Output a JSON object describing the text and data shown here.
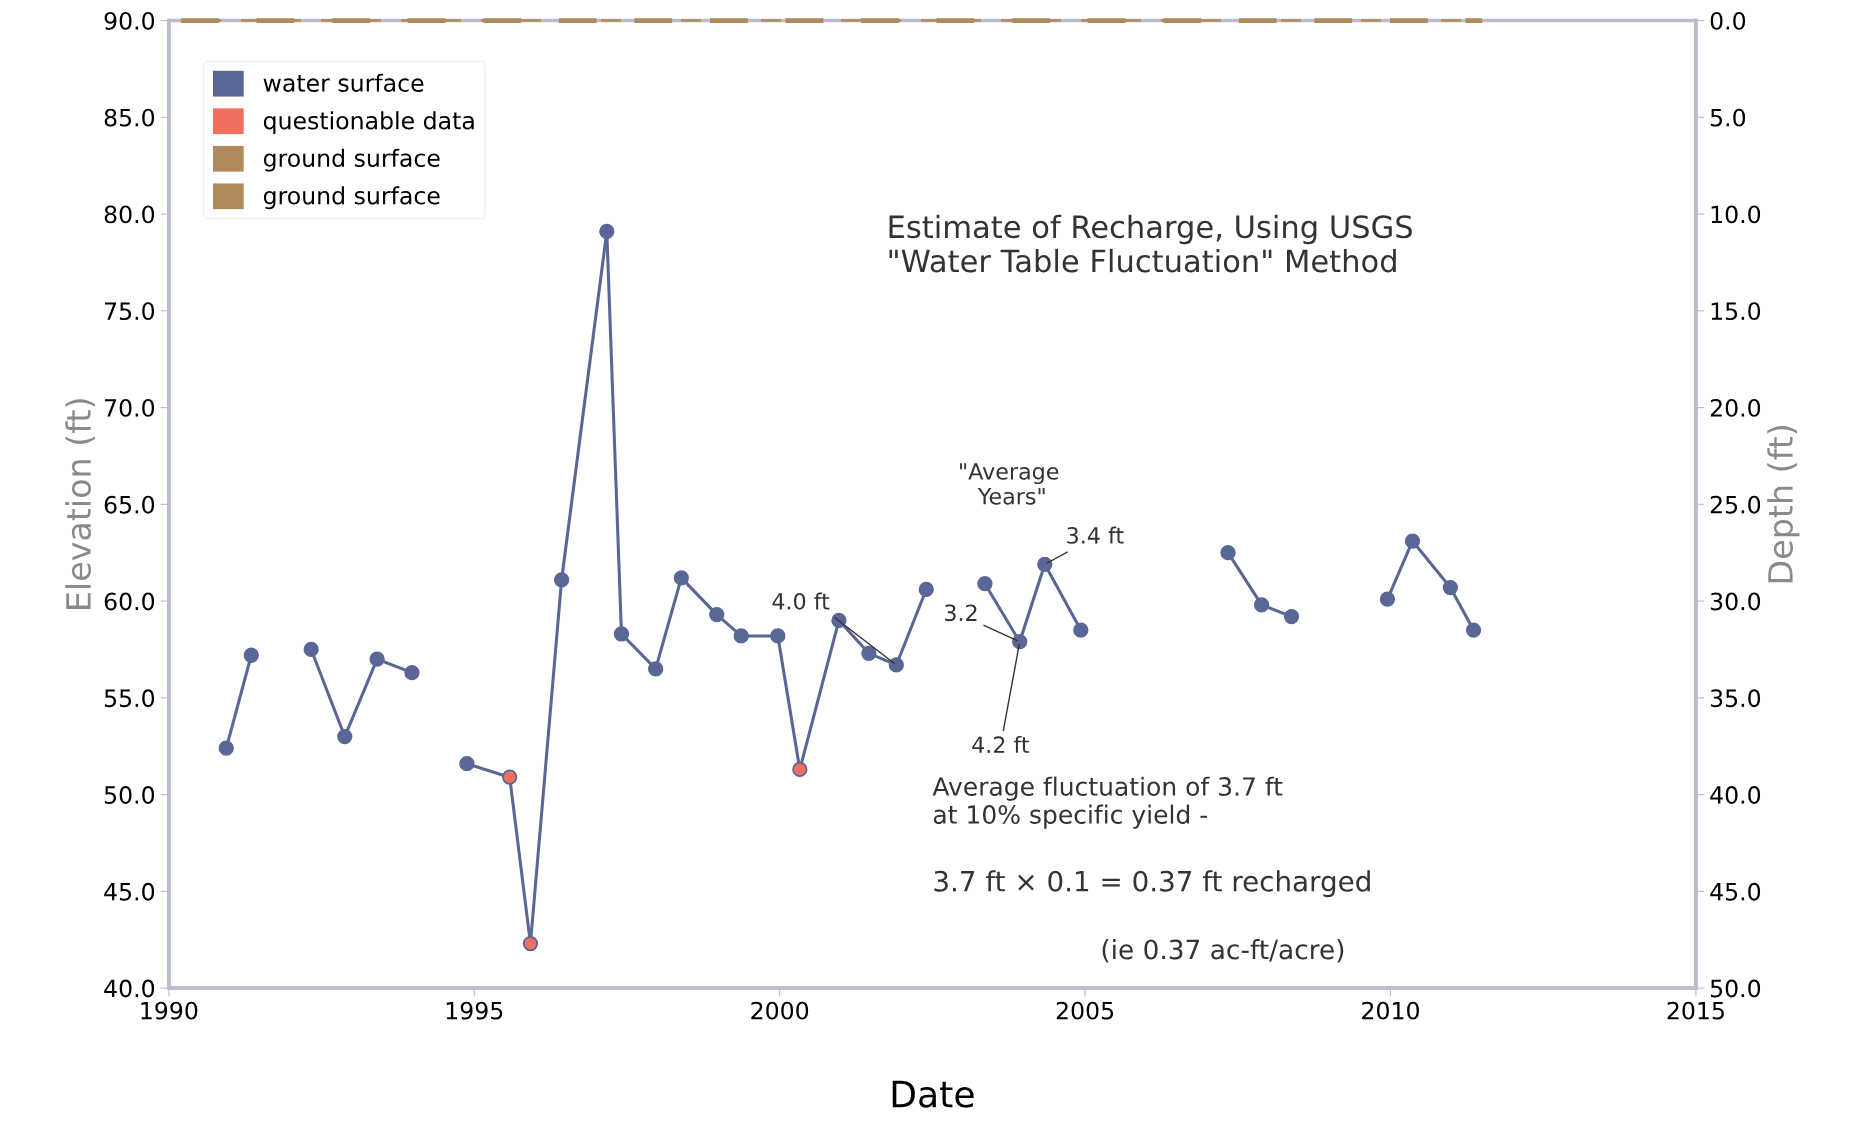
{
  "chart_data": {
    "type": "line",
    "xlabel": "Date",
    "ylabel": "Elevation (ft)",
    "y2label": "Depth (ft)",
    "xlim": [
      1990,
      2015
    ],
    "xticks": [
      1990,
      1995,
      2000,
      2005,
      2010,
      2015
    ],
    "ylim": [
      40,
      90
    ],
    "yticks": [
      {
        "value": 40,
        "label": "40.0"
      },
      {
        "value": 45,
        "label": "45.0"
      },
      {
        "value": 50,
        "label": "50.0"
      },
      {
        "value": 55,
        "label": "55.0"
      },
      {
        "value": 60,
        "label": "60.0"
      },
      {
        "value": 65,
        "label": "65.0"
      },
      {
        "value": 70,
        "label": "70.0"
      },
      {
        "value": 75,
        "label": "75.0"
      },
      {
        "value": 80,
        "label": "80.0"
      },
      {
        "value": 85,
        "label": "85.0"
      },
      {
        "value": 90,
        "label": "90.0"
      }
    ],
    "y2lim": [
      50,
      0
    ],
    "y2ticks": [
      {
        "value": 0,
        "label": "0.0"
      },
      {
        "value": 5,
        "label": "5.0"
      },
      {
        "value": 10,
        "label": "10.0"
      },
      {
        "value": 15,
        "label": "15.0"
      },
      {
        "value": 20,
        "label": "20.0"
      },
      {
        "value": 25,
        "label": "25.0"
      },
      {
        "value": 30,
        "label": "30.0"
      },
      {
        "value": 35,
        "label": "35.0"
      },
      {
        "value": 40,
        "label": "40.0"
      },
      {
        "value": 45,
        "label": "45.0"
      },
      {
        "value": 50,
        "label": "50.0"
      }
    ],
    "grid": false,
    "legend": "top left",
    "series": [
      {
        "name": "water surface",
        "color": "#5a6796",
        "marker": "circle",
        "line_style": "solid",
        "axis": "y",
        "x": [
          1990.94,
          1991.35,
          1991.8,
          1992.33,
          1992.88,
          1993.41,
          1993.98,
          1994.4,
          1994.88,
          1995.58,
          1995.92,
          1996.43,
          1997.17,
          1997.41,
          1997.97,
          1998.39,
          1998.97,
          1999.37,
          1999.97,
          2000.33,
          2000.97,
          2001.46,
          2001.91,
          2002.4,
          2002.9,
          2003.36,
          2003.93,
          2004.34,
          2004.93,
          2006.0,
          2007.34,
          2007.89,
          2008.38,
          2009.2,
          2009.95,
          2010.36,
          2010.98,
          2011.36
        ],
        "values": [
          52.4,
          57.2,
          null,
          57.5,
          53.0,
          57.0,
          56.3,
          null,
          51.6,
          50.9,
          42.3,
          61.1,
          79.1,
          58.3,
          56.5,
          61.2,
          59.3,
          58.2,
          58.2,
          51.3,
          59.0,
          57.3,
          56.7,
          60.6,
          null,
          60.9,
          57.9,
          61.9,
          58.5,
          null,
          62.5,
          59.8,
          59.2,
          null,
          60.1,
          63.1,
          60.7,
          58.5
        ]
      },
      {
        "name": "questionable data",
        "type": "scatter",
        "color": "#f07060",
        "marker": "circle",
        "axis": "y",
        "x": [
          1995.58,
          1995.92,
          2000.33
        ],
        "values": [
          50.9,
          42.3,
          51.3
        ]
      },
      {
        "name": "ground surface",
        "color": "#b08a5a",
        "marker": "none",
        "line_style": "dashed",
        "axis": "y",
        "x": [
          1990.2,
          2011.5
        ],
        "values": [
          90,
          90
        ]
      },
      {
        "name": "ground surface",
        "color": "#b08a5a",
        "marker": "none",
        "line_style": "dashed",
        "axis": "y2",
        "x": [
          1990.2,
          2011.5
        ],
        "values": [
          0,
          0
        ]
      }
    ],
    "annotations": [
      "Estimate of Recharge, Using USGS\n\"Water Table Fluctuation\" Method",
      "\"Average\n Years\"",
      {
        "text": "4.0 ft",
        "x": 2001.91,
        "y": 56.7
      },
      {
        "text": "3.2",
        "x": 2003.93,
        "y": 57.9
      },
      {
        "text": "4.2 ft",
        "x": 2003.93,
        "y": 57.9
      },
      {
        "text": "3.4 ft",
        "x": 2004.34,
        "y": 61.9
      },
      "Average fluctuation of 3.7 ft\nat 10% specific yield -",
      "3.7 ft × 0.1 = 0.37 ft recharged",
      "(ie 0.37 ac-ft/acre)"
    ]
  }
}
